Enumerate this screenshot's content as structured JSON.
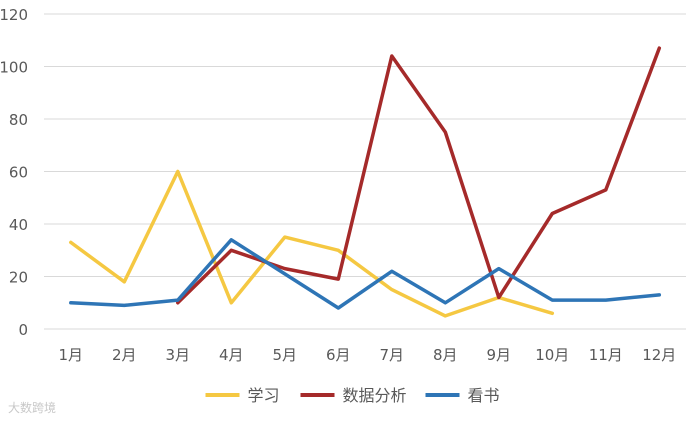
{
  "chart_data": {
    "type": "line",
    "categories": [
      "1月",
      "2月",
      "3月",
      "4月",
      "5月",
      "6月",
      "7月",
      "8月",
      "9月",
      "10月",
      "11月",
      "12月"
    ],
    "ylim": [
      0,
      120
    ],
    "yticks": [
      0,
      20,
      40,
      60,
      80,
      100,
      120
    ],
    "grid": true,
    "legend_position": "bottom",
    "series": [
      {
        "name": "学习",
        "color": "#F5C842",
        "values": [
          33,
          18,
          60,
          10,
          35,
          30,
          15,
          5,
          12,
          6,
          null,
          null
        ]
      },
      {
        "name": "数据分析",
        "color": "#A52A2A",
        "values": [
          null,
          null,
          10,
          30,
          23,
          19,
          104,
          75,
          12,
          44,
          53,
          107
        ]
      },
      {
        "name": "看书",
        "color": "#2E75B6",
        "values": [
          10,
          9,
          11,
          34,
          21,
          8,
          22,
          10,
          23,
          11,
          11,
          13
        ]
      }
    ]
  },
  "watermark": "大数跨境"
}
